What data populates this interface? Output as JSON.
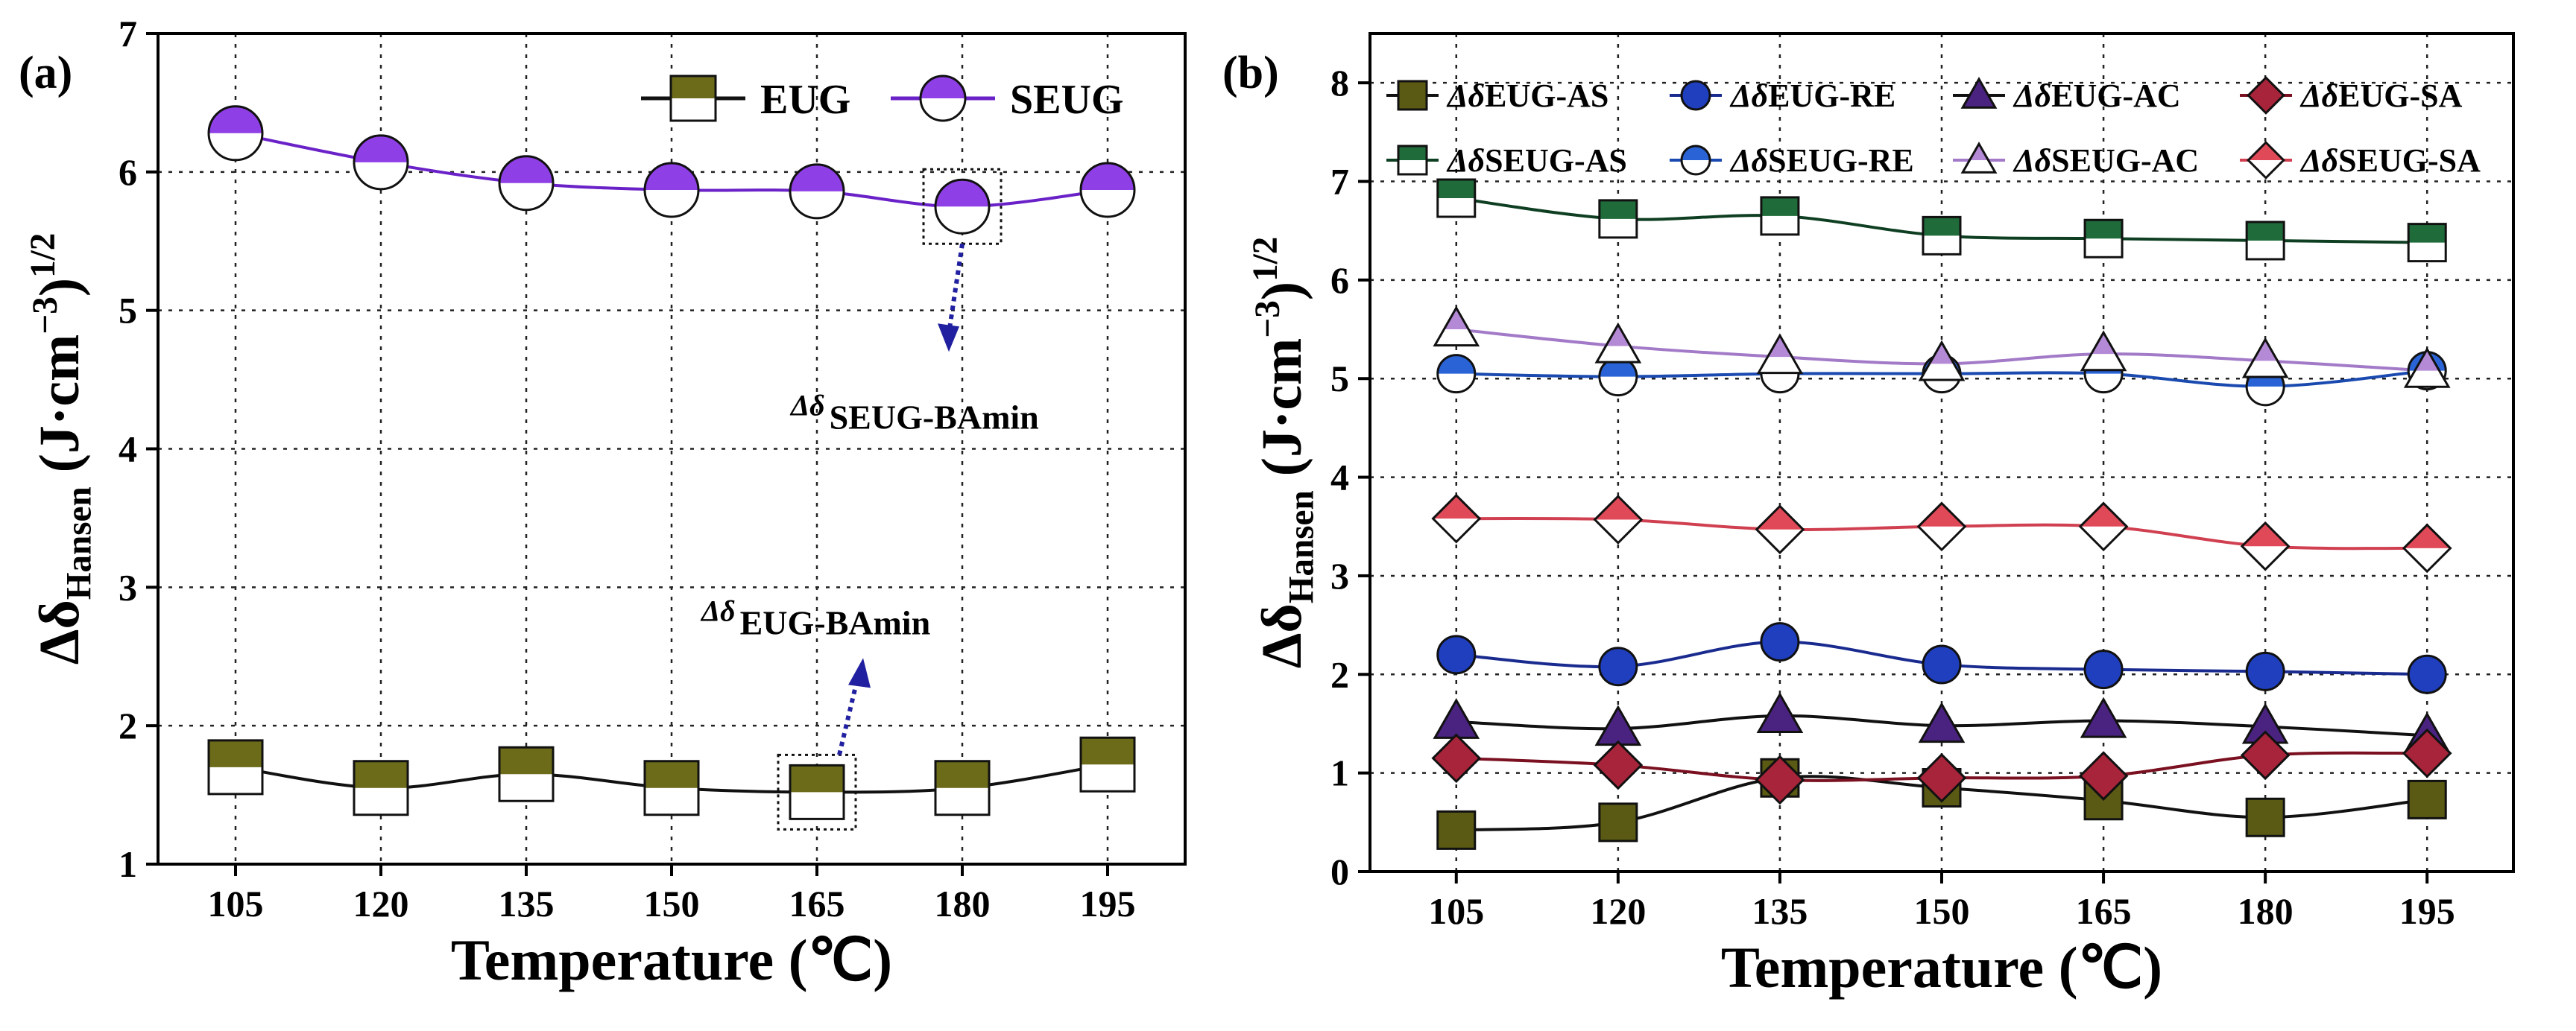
{
  "chart_data": [
    {
      "panel": "(a)",
      "type": "line",
      "x": [
        105,
        120,
        135,
        150,
        165,
        180,
        195
      ],
      "series": [
        {
          "name": "EUG",
          "marker": "square-half",
          "line_color": "#111111",
          "fill_color": "#6b6b1a",
          "values": [
            1.7,
            1.55,
            1.65,
            1.55,
            1.52,
            1.55,
            1.72
          ]
        },
        {
          "name": "SEUG",
          "marker": "circle-half",
          "line_color": "#6a22c8",
          "fill_color": "#8e3fe6",
          "values": [
            6.28,
            6.07,
            5.92,
            5.87,
            5.86,
            5.75,
            5.87
          ]
        }
      ],
      "xlabel": "Temperature (℃)",
      "ylabel": {
        "main": "Δδ",
        "sub": "Hansen",
        "unit": "(J·cm",
        "exp1": "−3",
        "close": ")",
        "exp2": "1/2"
      },
      "xlim": [
        97,
        203
      ],
      "ylim": [
        1,
        7
      ],
      "yticks": [
        1,
        2,
        3,
        4,
        5,
        6,
        7
      ],
      "grid": true,
      "legend_position": "top-right",
      "annotations": [
        {
          "base": "Δδ",
          "sub": "SEUG-BAmin",
          "x": 180,
          "y": 5.75,
          "direction": "down"
        },
        {
          "base": "Δδ",
          "sub": "EUG-BAmin",
          "x": 165,
          "y": 1.52,
          "direction": "up"
        }
      ]
    },
    {
      "panel": "(b)",
      "type": "line",
      "x": [
        105,
        120,
        135,
        150,
        165,
        180,
        195
      ],
      "series": [
        {
          "name": "ΔδEUG-AS",
          "base": "Δδ",
          "suffix": "EUG-AS",
          "marker": "square",
          "line_color": "#111111",
          "fill_color": "#5a5a14",
          "values": [
            0.42,
            0.5,
            0.95,
            0.85,
            0.72,
            0.55,
            0.73
          ]
        },
        {
          "name": "ΔδEUG-RE",
          "base": "Δδ",
          "suffix": "EUG-RE",
          "marker": "circle",
          "line_color": "#1a2b8f",
          "fill_color": "#1f3fbf",
          "values": [
            2.2,
            2.08,
            2.33,
            2.1,
            2.05,
            2.03,
            2.0
          ]
        },
        {
          "name": "ΔδEUG-AC",
          "base": "Δδ",
          "suffix": "EUG-AC",
          "marker": "triangle",
          "line_color": "#111111",
          "fill_color": "#4a2380",
          "values": [
            1.52,
            1.45,
            1.58,
            1.48,
            1.53,
            1.47,
            1.38
          ]
        },
        {
          "name": "ΔδEUG-SA",
          "base": "Δδ",
          "suffix": "EUG-SA",
          "marker": "diamond",
          "line_color": "#7a1020",
          "fill_color": "#a8243a",
          "values": [
            1.15,
            1.08,
            0.93,
            0.95,
            0.97,
            1.18,
            1.2
          ]
        },
        {
          "name": "ΔδSEUG-AS",
          "base": "Δδ",
          "suffix": "SEUG-AS",
          "marker": "square-half",
          "line_color": "#0f3f22",
          "fill_color": "#1f6b3a",
          "values": [
            6.83,
            6.62,
            6.65,
            6.45,
            6.42,
            6.4,
            6.38
          ]
        },
        {
          "name": "ΔδSEUG-RE",
          "base": "Δδ",
          "suffix": "SEUG-RE",
          "marker": "circle-half",
          "line_color": "#1a4ab0",
          "fill_color": "#2a63d6",
          "values": [
            5.05,
            5.02,
            5.05,
            5.05,
            5.05,
            4.92,
            5.08
          ]
        },
        {
          "name": "ΔδSEUG-AC",
          "base": "Δδ",
          "suffix": "SEUG-AC",
          "marker": "triangle-half",
          "line_color": "#a27ac8",
          "fill_color": "#b48ad6",
          "values": [
            5.5,
            5.33,
            5.22,
            5.15,
            5.25,
            5.18,
            5.08
          ]
        },
        {
          "name": "ΔδSEUG-SA",
          "base": "Δδ",
          "suffix": "SEUG-SA",
          "marker": "diamond-half",
          "line_color": "#d04050",
          "fill_color": "#e04a58",
          "values": [
            3.58,
            3.57,
            3.47,
            3.5,
            3.5,
            3.3,
            3.28
          ]
        }
      ],
      "xlabel": "Temperature (℃)",
      "ylabel": {
        "main": "Δδ",
        "sub": "Hansen",
        "unit": "(J·cm",
        "exp1": "−3",
        "close": ")",
        "exp2": "1/2"
      },
      "xlim": [
        97,
        203
      ],
      "ylim": [
        0,
        8.5
      ],
      "yticks": [
        0,
        1,
        2,
        3,
        4,
        5,
        6,
        7,
        8
      ],
      "grid": true,
      "legend_position": "top"
    }
  ]
}
